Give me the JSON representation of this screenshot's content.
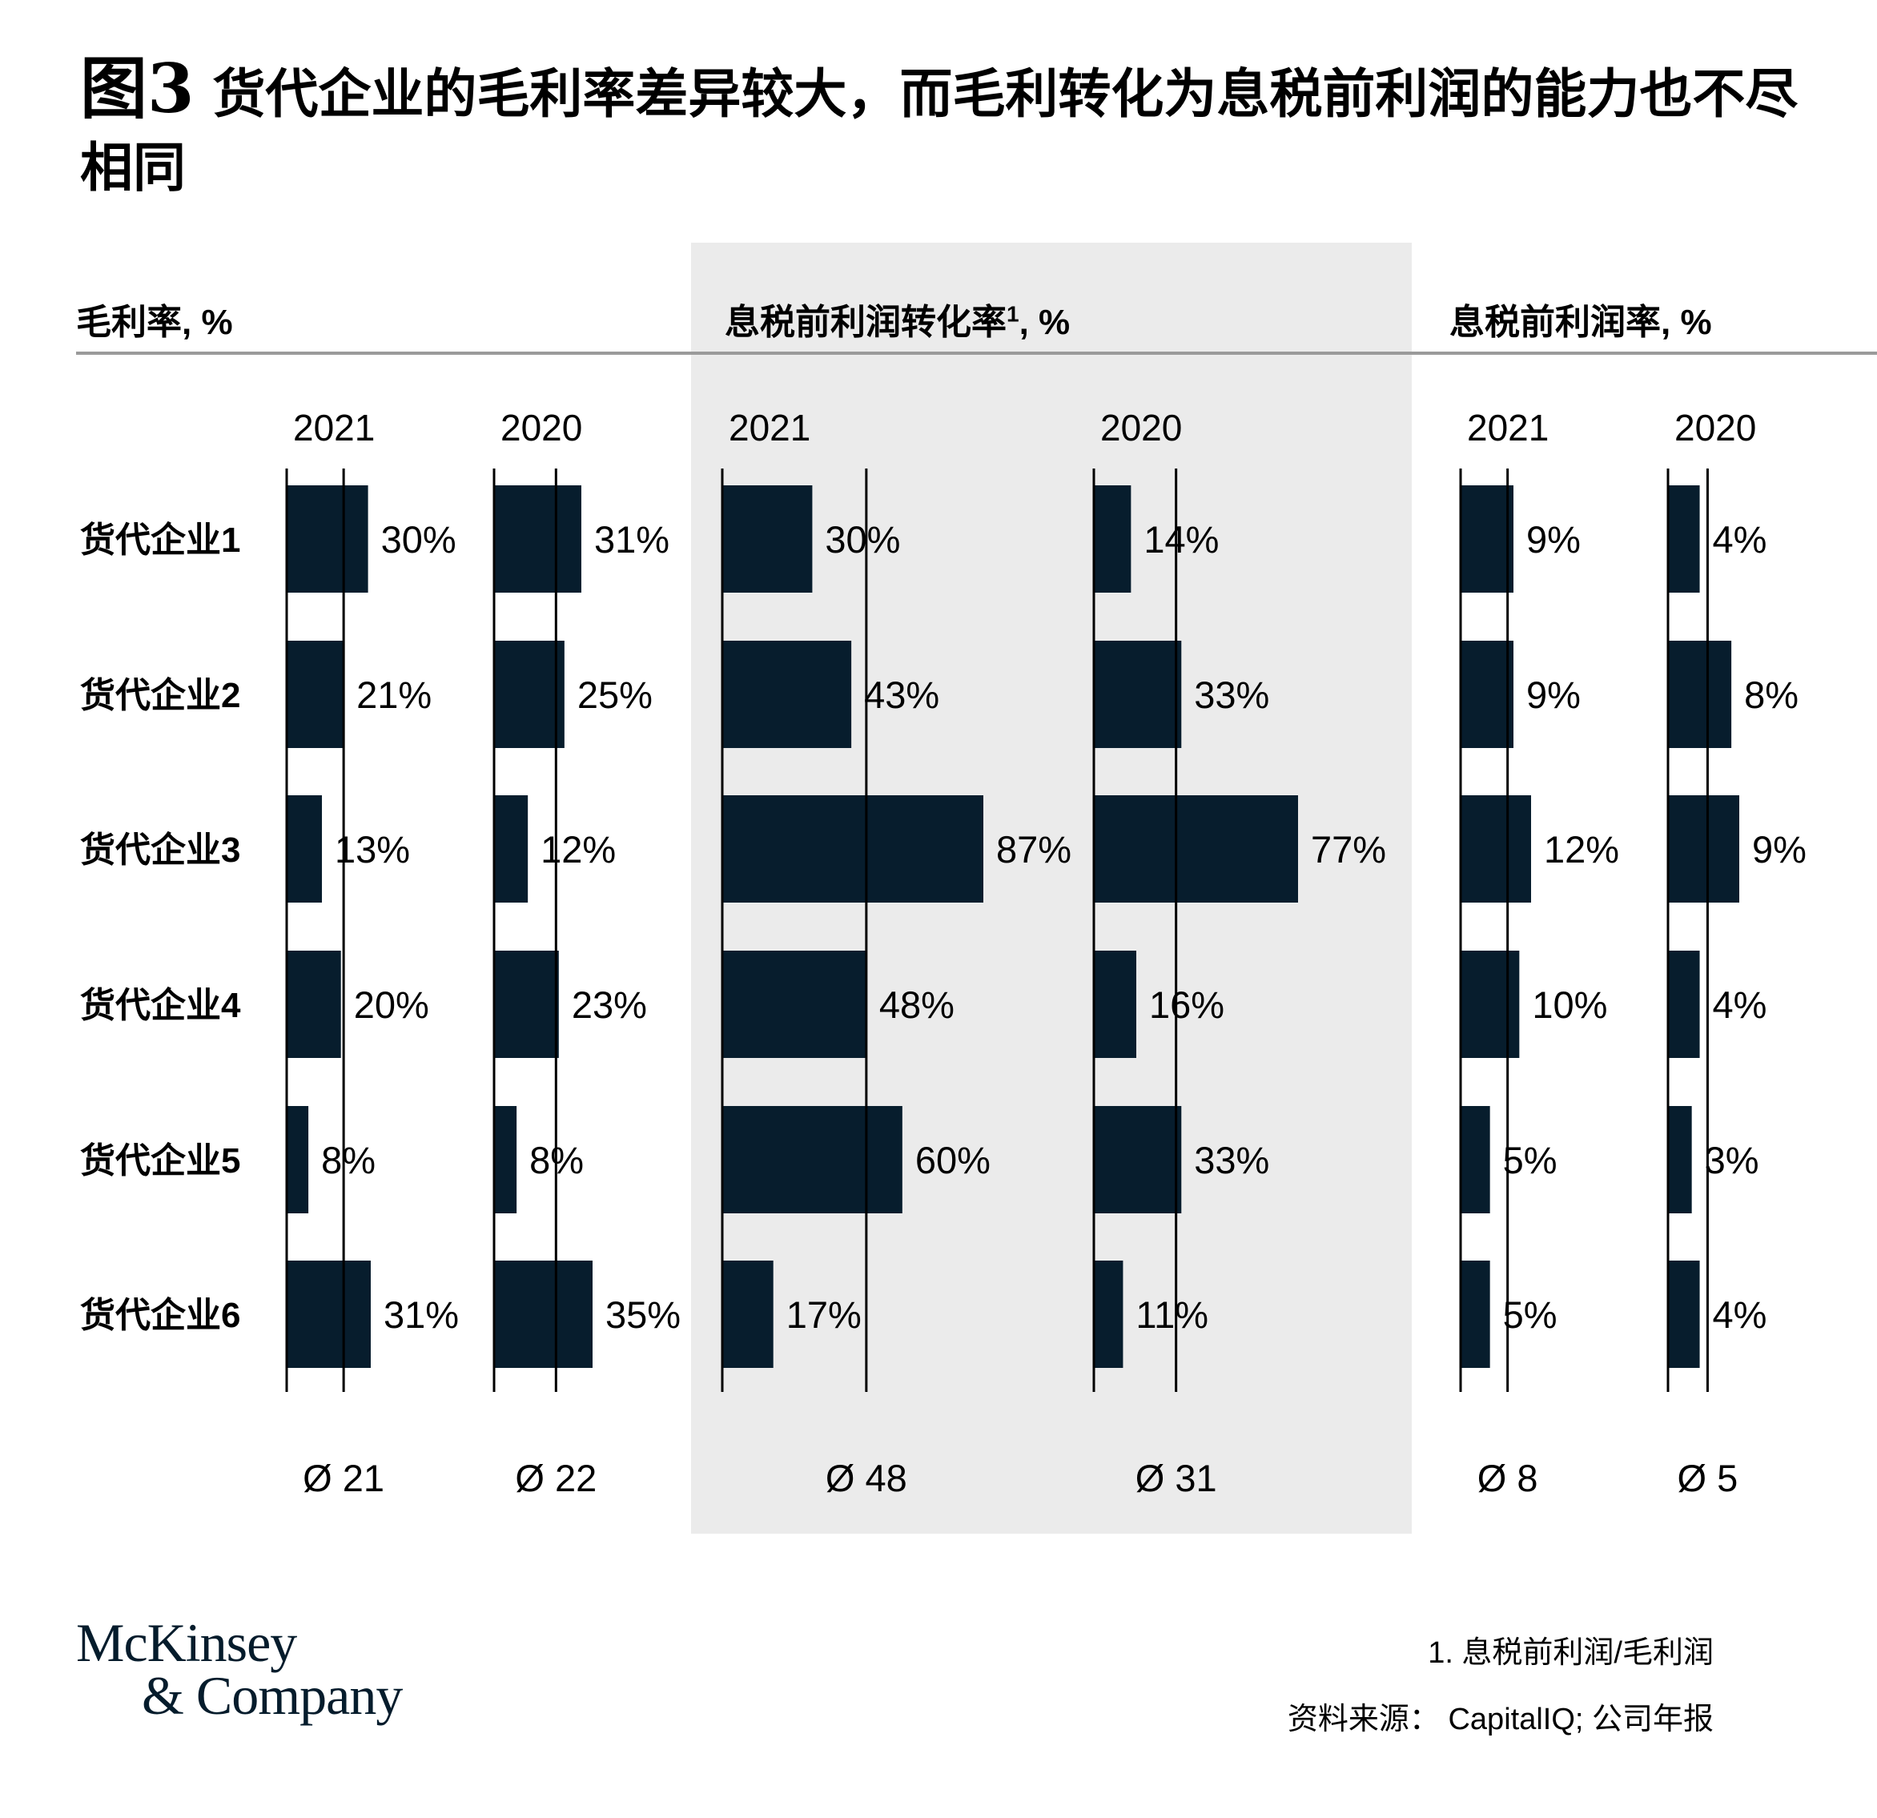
{
  "title_prefix": "图3",
  "title": "货代企业的毛利率差异较大，而毛利转化为息税前利润的能力也不尽相同",
  "sections": [
    {
      "label": "毛利率",
      "suffix": ", %",
      "sup": ""
    },
    {
      "label": "息税前利润转化率",
      "suffix": ", %",
      "sup": "1"
    },
    {
      "label": "息税前利润率",
      "suffix": ", %",
      "sup": ""
    }
  ],
  "colors": {
    "bar": "#071d2d",
    "panel": "#ebebeb",
    "rule": "#9a9a9a",
    "text": "#000000"
  },
  "chart_data": {
    "type": "bar",
    "orientation": "horizontal",
    "categories": [
      "货代企业1",
      "货代企业2",
      "货代企业3",
      "货代企业4",
      "货代企业5",
      "货代企业6"
    ],
    "panels": [
      {
        "section": "毛利率",
        "year": "2021",
        "values": [
          30,
          21,
          13,
          20,
          8,
          31
        ],
        "average_label": "Ø 21",
        "average": 21,
        "max": 31
      },
      {
        "section": "毛利率",
        "year": "2020",
        "values": [
          31,
          25,
          12,
          23,
          8,
          35
        ],
        "average_label": "Ø 22",
        "average": 22,
        "max": 35
      },
      {
        "section": "息税前利润转化率",
        "year": "2021",
        "values": [
          30,
          43,
          87,
          48,
          60,
          17
        ],
        "average_label": "Ø 48",
        "average": 48,
        "max": 87
      },
      {
        "section": "息税前利润转化率",
        "year": "2020",
        "values": [
          14,
          33,
          77,
          16,
          33,
          11
        ],
        "average_label": "Ø 31",
        "average": 31,
        "max": 77
      },
      {
        "section": "息税前利润率",
        "year": "2021",
        "values": [
          9,
          9,
          12,
          10,
          5,
          5
        ],
        "average_label": "Ø 8",
        "average": 8,
        "max": 12
      },
      {
        "section": "息税前利润率",
        "year": "2020",
        "values": [
          4,
          8,
          9,
          4,
          3,
          4
        ],
        "average_label": "Ø 5",
        "average": 5,
        "max": 9
      }
    ],
    "value_suffix": "%"
  },
  "footnote": "1. 息税前利润/毛利润",
  "source": "资料来源： CapitalIQ; 公司年报",
  "logo": {
    "line1": "McKinsey",
    "line2": "& Company"
  }
}
